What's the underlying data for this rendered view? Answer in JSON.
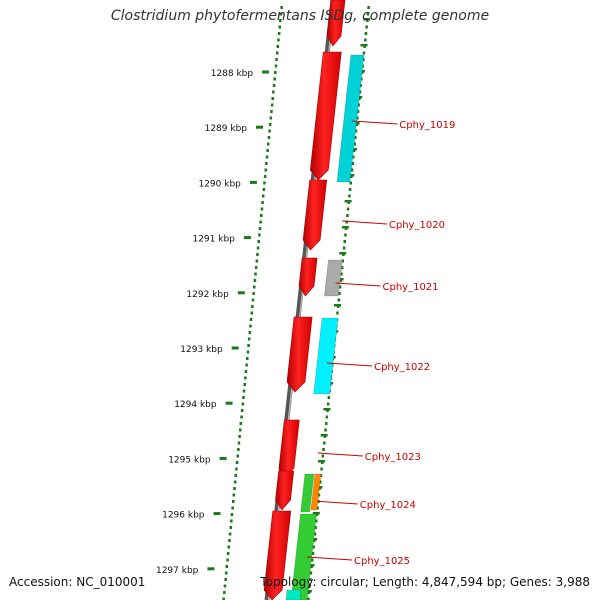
{
  "title": "Clostridium phytofermentans ISDg, complete genome",
  "accession": "Accession: NC_010001",
  "summary": "Topology: circular; Length: 4,847,594 bp; Genes: 3,988",
  "ticks": [
    {
      "label": "1288 kbp"
    },
    {
      "label": "1289 kbp"
    },
    {
      "label": "1290 kbp"
    },
    {
      "label": "1291 kbp"
    },
    {
      "label": "1292 kbp"
    },
    {
      "label": "1293 kbp"
    },
    {
      "label": "1294 kbp"
    },
    {
      "label": "1295 kbp"
    },
    {
      "label": "1296 kbp"
    },
    {
      "label": "1297 kbp"
    }
  ],
  "genes": [
    {
      "label": "Cphy_1019",
      "cog_color": "#00d3d8"
    },
    {
      "label": "Cphy_1020",
      "cog_color": ""
    },
    {
      "label": "Cphy_1021",
      "cog_color": "#aaaaaa"
    },
    {
      "label": "Cphy_1022",
      "cog_color": "#00f0ff"
    },
    {
      "label": "Cphy_1023",
      "cog_color": ""
    },
    {
      "label": "Cphy_1024",
      "cog_color": "#33cc33"
    },
    {
      "label": "Cphy_1025",
      "cog_color": "#33cc33"
    }
  ],
  "colors": {
    "cds": "#ee1111",
    "backbone": "#777777",
    "ticks": "#1a7a1a",
    "labels": "#cc0000",
    "secondary_cog": "#ff8800",
    "bottom_cog": "#00e8c0"
  }
}
